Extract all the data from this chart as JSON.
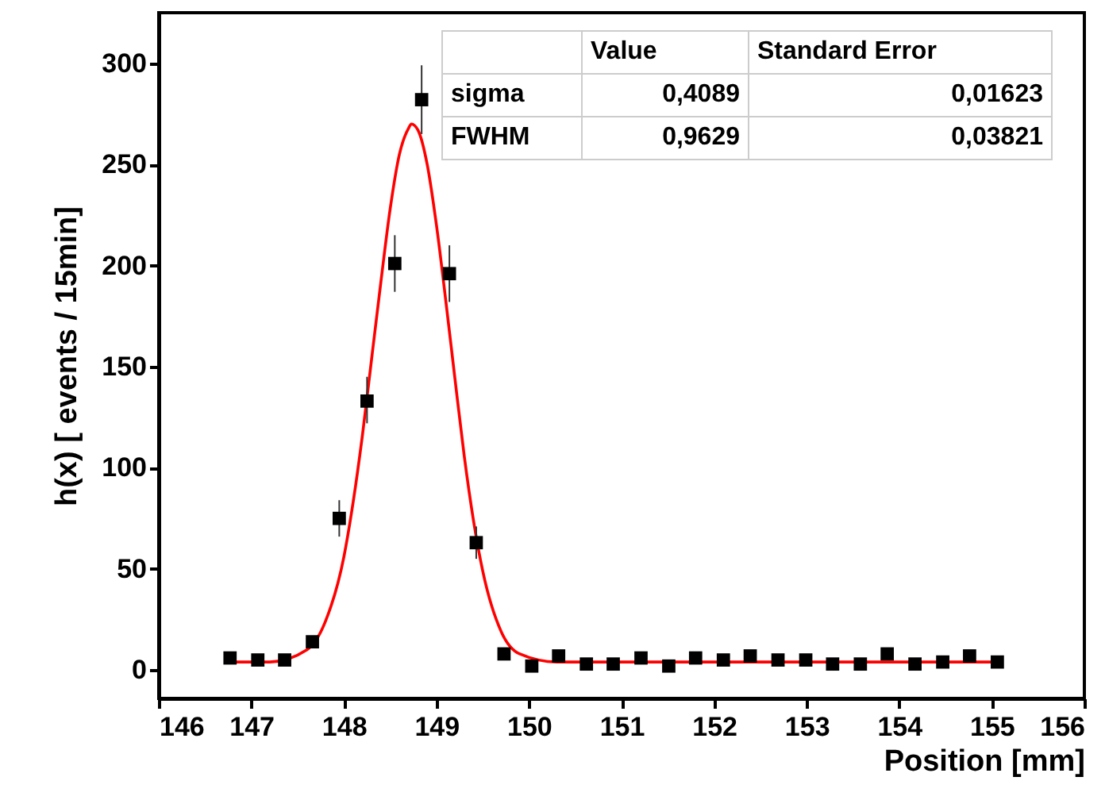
{
  "chart_data": {
    "type": "scatter",
    "xlabel": "Position [mm]",
    "ylabel": "h(x) [ events / 15min]",
    "xlim": [
      146,
      156
    ],
    "xticks": [
      146,
      147,
      148,
      149,
      150,
      151,
      152,
      153,
      154,
      155,
      156
    ],
    "ylim": [
      -14,
      325
    ],
    "yticks": [
      0,
      50,
      100,
      150,
      200,
      250,
      300
    ],
    "marker": "square",
    "annotations": [
      "Value",
      "Standard Error",
      "sigma",
      "0,4089",
      "0,01623",
      "FWHM",
      "0,9629",
      "0,03821"
    ],
    "series": [
      {
        "color": "#000000",
        "x": [
          146.77,
          147.07,
          147.36,
          147.66,
          147.95,
          148.25,
          148.55,
          148.84,
          149.14,
          149.43,
          149.73,
          150.03,
          150.32,
          150.62,
          150.91,
          151.21,
          151.51,
          151.8,
          152.1,
          152.39,
          152.69,
          152.99,
          153.28,
          153.58,
          153.87,
          154.17,
          154.47,
          154.76,
          155.06
        ],
        "values": [
          6,
          5,
          5,
          14,
          75,
          133,
          201,
          282,
          196,
          63,
          8,
          2,
          7,
          3,
          3,
          6,
          2,
          6,
          5,
          7,
          5,
          5,
          3,
          3,
          8,
          3,
          4,
          7,
          4
        ],
        "errors": [
          null,
          null,
          null,
          null,
          [
            66,
            84
          ],
          [
            122,
            145
          ],
          [
            187,
            215
          ],
          [
            265,
            299
          ],
          [
            182,
            210
          ],
          [
            55,
            71
          ],
          null,
          null,
          null,
          null,
          null,
          null,
          null,
          null,
          null,
          null,
          null,
          null,
          null,
          null,
          null,
          null,
          null,
          null,
          null
        ]
      },
      {
        "type": "line",
        "color": "#ff0000",
        "line_style": "solid",
        "marker": "none",
        "x": [
          146.77,
          147.2,
          147.6,
          147.8,
          148.0,
          148.1,
          148.2,
          148.3,
          148.4,
          148.5,
          148.6,
          148.7,
          148.73,
          148.8,
          148.9,
          149.0,
          149.1,
          149.2,
          149.3,
          149.4,
          149.5,
          149.7,
          149.9,
          150.3,
          152.0,
          155.06
        ],
        "values": [
          4,
          4,
          10,
          24,
          56,
          83,
          116,
          154,
          192,
          228,
          255,
          268,
          270,
          267,
          250,
          220,
          183,
          144,
          106,
          74,
          49,
          19,
          8,
          4,
          4,
          4
        ]
      }
    ]
  }
}
